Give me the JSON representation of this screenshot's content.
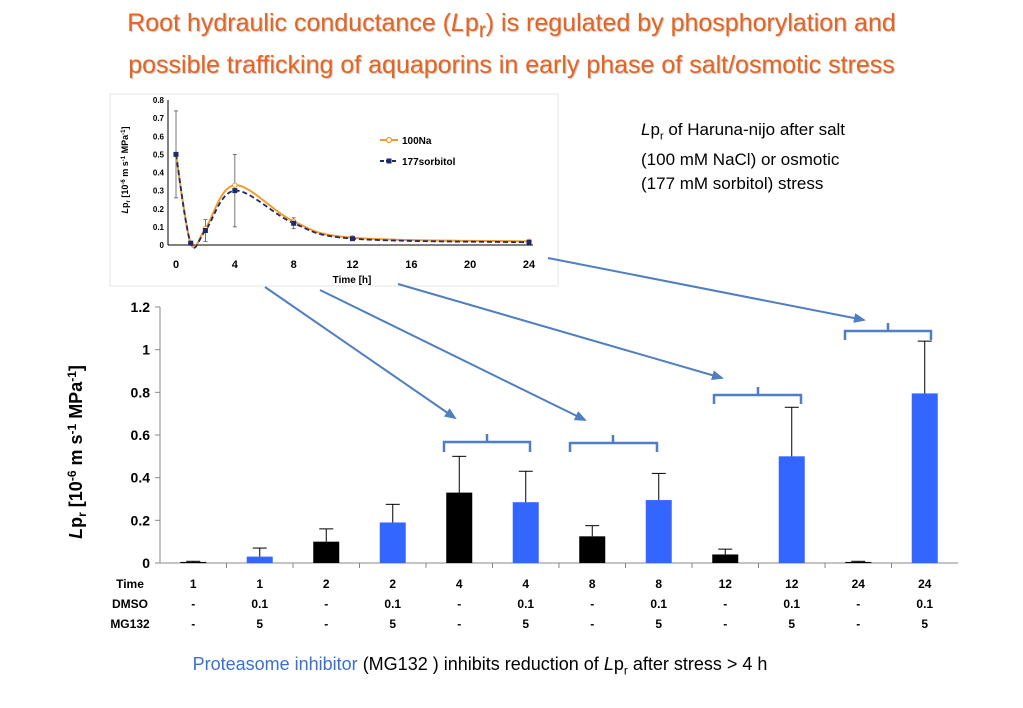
{
  "slide": {
    "title_part1": "Root hydraulic conductance (",
    "title_italic": "L",
    "title_p": "p",
    "title_sub": "r",
    "title_part2": ") is regulated by phosphorylation and",
    "title_line2": "possible trafficking of aquaporins in early phase of salt/osmotic stress",
    "desc_L": "L",
    "desc_p": "p",
    "desc_sub": "r",
    "desc_line1": " of Haruna-nijo after salt",
    "desc_line2": "(100 mM NaCl)  or osmotic",
    "desc_line3": "(177 mM sorbitol) stress",
    "footer_blue": "Proteasome inhibitor",
    "footer_mid": " (MG132 ) inhibits reduction of ",
    "footer_L": "L",
    "footer_p": "p",
    "footer_sub": "r",
    "footer_end": " after stress > 4 h",
    "colors": {
      "title": "#e8641e",
      "blue_bar": "#3366ff",
      "black_bar": "#000000",
      "arrow": "#4f7fc0",
      "orange_line": "#f39a2a",
      "navy_line": "#1f2a66"
    }
  },
  "chart_data": [
    {
      "type": "line",
      "ylabel_L": "L",
      "ylabel_p": "p",
      "ylabel_sub": "r",
      "ylabel_rest": "  [10",
      "ylabel_exp1": "-6",
      "ylabel_mid": " m s",
      "ylabel_exp2": "-1",
      "ylabel_end": " MPa",
      "ylabel_exp3": "-1",
      "ylabel_close": "]",
      "xlabel": "Time [h]",
      "xlim": [
        0,
        24
      ],
      "ylim": [
        0,
        0.8
      ],
      "xticks": [
        "0",
        "4",
        "8",
        "12",
        "16",
        "20",
        "24"
      ],
      "yticks": [
        "0",
        "0.1",
        "0.2",
        "0.3",
        "0.4",
        "0.5",
        "0.6",
        "0.7",
        "0.8"
      ],
      "series": [
        {
          "name": "100Na",
          "x": [
            0,
            1,
            2,
            4,
            8,
            12,
            24
          ],
          "y": [
            0.5,
            0.01,
            0.09,
            0.33,
            0.13,
            0.04,
            0.02
          ]
        },
        {
          "name": "177sorbitol",
          "x": [
            0,
            1,
            2,
            4,
            8,
            12,
            24
          ],
          "y": [
            0.5,
            0.01,
            0.08,
            0.3,
            0.12,
            0.035,
            0.015
          ],
          "err": [
            0.24,
            0.01,
            0.06,
            0.2,
            0.03,
            0.01,
            0.01
          ]
        }
      ]
    },
    {
      "type": "bar",
      "ylabel_L": "L",
      "ylabel_p": "p",
      "ylabel_sub": "r",
      "ylabel_rest": "  [10",
      "ylabel_exp1": "-6",
      "ylabel_mid": " m s",
      "ylabel_exp2": "-1",
      "ylabel_end": " MPa",
      "ylabel_exp3": "-1",
      "ylabel_close": "]",
      "ylim": [
        0,
        1.2
      ],
      "yticks": [
        "0",
        "0.2",
        "0.4",
        "0.6",
        "0.8",
        "1",
        "1.2"
      ],
      "row_labels": [
        "Time",
        "DMSO",
        "MG132"
      ],
      "time": [
        "1",
        "1",
        "2",
        "2",
        "4",
        "4",
        "8",
        "8",
        "12",
        "12",
        "24",
        "24"
      ],
      "dmso": [
        "-",
        "0.1",
        "-",
        "0.1",
        "-",
        "0.1",
        "-",
        "0.1",
        "-",
        "0.1",
        "-",
        "0.1"
      ],
      "mg132": [
        "-",
        "5",
        "-",
        "5",
        "-",
        "5",
        "-",
        "5",
        "-",
        "5",
        "-",
        "5"
      ],
      "values": [
        0.005,
        0.03,
        0.1,
        0.19,
        0.33,
        0.285,
        0.125,
        0.295,
        0.04,
        0.5,
        0.005,
        0.795
      ],
      "errors": [
        0.003,
        0.04,
        0.06,
        0.085,
        0.17,
        0.145,
        0.05,
        0.125,
        0.025,
        0.23,
        0.003,
        0.245
      ],
      "bar_colors": [
        "black",
        "blue",
        "black",
        "blue",
        "black",
        "blue",
        "black",
        "blue",
        "black",
        "blue",
        "black",
        "blue"
      ]
    }
  ]
}
